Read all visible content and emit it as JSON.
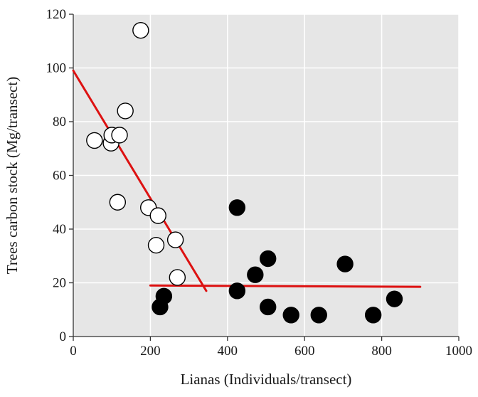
{
  "chart_data": {
    "type": "scatter",
    "xlabel": "Lianas (Individuals/transect)",
    "ylabel": "Trees carbon stock (Mg/transect)",
    "xlim": [
      0,
      1000
    ],
    "ylim": [
      0,
      120
    ],
    "xticks": [
      0,
      200,
      400,
      600,
      800,
      1000
    ],
    "yticks": [
      0,
      20,
      40,
      60,
      80,
      100,
      120
    ],
    "grid": true,
    "background": "#e6e6e6",
    "series": [
      {
        "marker": "open-circle",
        "color": "#000000",
        "points": [
          {
            "x": 55,
            "y": 73
          },
          {
            "x": 98,
            "y": 72
          },
          {
            "x": 100,
            "y": 75
          },
          {
            "x": 120,
            "y": 75
          },
          {
            "x": 115,
            "y": 50
          },
          {
            "x": 135,
            "y": 84
          },
          {
            "x": 175,
            "y": 114
          },
          {
            "x": 195,
            "y": 48
          },
          {
            "x": 220,
            "y": 45
          },
          {
            "x": 215,
            "y": 34
          },
          {
            "x": 265,
            "y": 36
          },
          {
            "x": 270,
            "y": 22
          }
        ]
      },
      {
        "marker": "filled-circle",
        "color": "#000000",
        "points": [
          {
            "x": 225,
            "y": 11
          },
          {
            "x": 235,
            "y": 15
          },
          {
            "x": 425,
            "y": 48
          },
          {
            "x": 425,
            "y": 17
          },
          {
            "x": 472,
            "y": 23
          },
          {
            "x": 505,
            "y": 29
          },
          {
            "x": 505,
            "y": 11
          },
          {
            "x": 565,
            "y": 8
          },
          {
            "x": 637,
            "y": 8
          },
          {
            "x": 705,
            "y": 27
          },
          {
            "x": 778,
            "y": 8
          },
          {
            "x": 833,
            "y": 14
          }
        ]
      }
    ],
    "fit_lines": [
      {
        "color": "#dd1111",
        "x": [
          0,
          345
        ],
        "y": [
          99,
          17
        ]
      },
      {
        "color": "#dd1111",
        "x": [
          200,
          900
        ],
        "y": [
          19,
          18.5
        ]
      }
    ]
  }
}
